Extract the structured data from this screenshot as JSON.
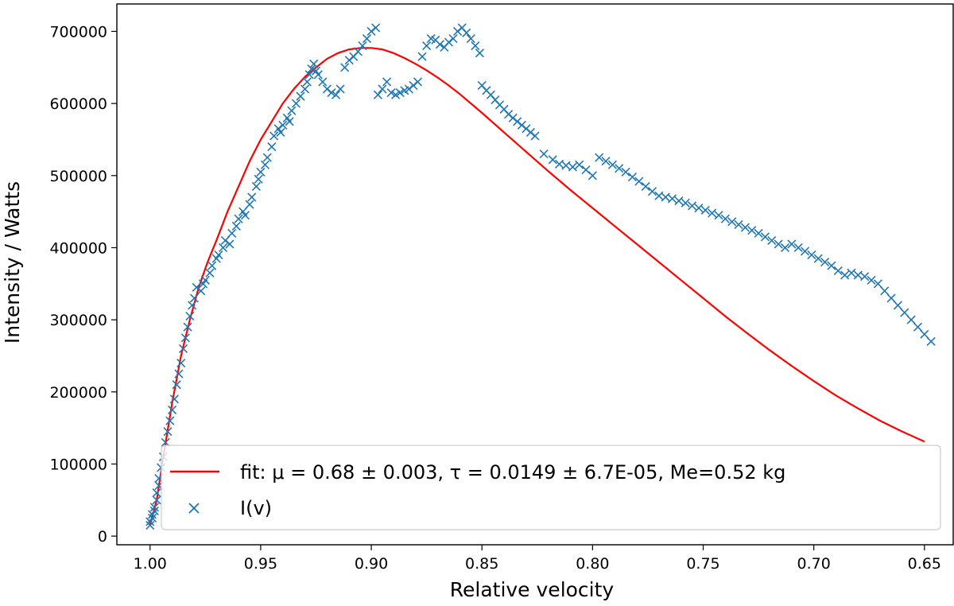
{
  "chart_data": {
    "type": "scatter",
    "title": "",
    "xlabel": "Relative velocity",
    "ylabel": "Intensity / Watts",
    "xlim": [
      1.015,
      0.637
    ],
    "ylim": [
      -12000,
      738000
    ],
    "x_inverted": true,
    "xticks": [
      1.0,
      0.95,
      0.9,
      0.85,
      0.8,
      0.75,
      0.7,
      0.65
    ],
    "xtick_labels": [
      "1.00",
      "0.95",
      "0.90",
      "0.85",
      "0.80",
      "0.75",
      "0.70",
      "0.65"
    ],
    "yticks": [
      0,
      100000,
      200000,
      300000,
      400000,
      500000,
      600000,
      700000
    ],
    "ytick_labels": [
      "0",
      "100000",
      "200000",
      "300000",
      "400000",
      "500000",
      "600000",
      "700000"
    ],
    "grid": false,
    "legend_position": "lower-center",
    "series": [
      {
        "name": "fit",
        "kind": "line",
        "color": "#ff0000",
        "legend_label": "fit: μ = 0.68 ± 0.003, τ = 0.0149 ± 6.7E-05, Me=0.52 kg",
        "points": [
          [
            1.0,
            15000
          ],
          [
            0.997,
            50000
          ],
          [
            0.994,
            110000
          ],
          [
            0.99,
            185000
          ],
          [
            0.986,
            250000
          ],
          [
            0.982,
            300000
          ],
          [
            0.978,
            345000
          ],
          [
            0.974,
            380000
          ],
          [
            0.97,
            410000
          ],
          [
            0.965,
            450000
          ],
          [
            0.96,
            485000
          ],
          [
            0.955,
            520000
          ],
          [
            0.95,
            550000
          ],
          [
            0.945,
            575000
          ],
          [
            0.94,
            600000
          ],
          [
            0.935,
            620000
          ],
          [
            0.93,
            637000
          ],
          [
            0.925,
            650000
          ],
          [
            0.92,
            662000
          ],
          [
            0.915,
            670000
          ],
          [
            0.91,
            675000
          ],
          [
            0.905,
            677000
          ],
          [
            0.9,
            677000
          ],
          [
            0.895,
            675000
          ],
          [
            0.89,
            670000
          ],
          [
            0.885,
            663000
          ],
          [
            0.88,
            655000
          ],
          [
            0.875,
            646000
          ],
          [
            0.87,
            636000
          ],
          [
            0.865,
            625000
          ],
          [
            0.86,
            613000
          ],
          [
            0.85,
            587000
          ],
          [
            0.84,
            560000
          ],
          [
            0.83,
            533000
          ],
          [
            0.82,
            506000
          ],
          [
            0.81,
            480000
          ],
          [
            0.8,
            455000
          ],
          [
            0.79,
            430000
          ],
          [
            0.78,
            405000
          ],
          [
            0.77,
            380000
          ],
          [
            0.76,
            355000
          ],
          [
            0.75,
            330000
          ],
          [
            0.74,
            305000
          ],
          [
            0.73,
            281000
          ],
          [
            0.72,
            258000
          ],
          [
            0.71,
            236000
          ],
          [
            0.7,
            215000
          ],
          [
            0.69,
            195000
          ],
          [
            0.68,
            177000
          ],
          [
            0.67,
            160000
          ],
          [
            0.66,
            145000
          ],
          [
            0.65,
            131000
          ]
        ]
      },
      {
        "name": "I(v)",
        "kind": "scatter",
        "marker": "x",
        "color": "#1f77b4",
        "legend_label": "I(v)",
        "points": [
          [
            1.0,
            15000
          ],
          [
            1.0,
            20000
          ],
          [
            0.999,
            25000
          ],
          [
            0.999,
            30000
          ],
          [
            0.998,
            35000
          ],
          [
            0.998,
            40000
          ],
          [
            0.997,
            50000
          ],
          [
            0.997,
            60000
          ],
          [
            0.996,
            70000
          ],
          [
            0.996,
            80000
          ],
          [
            0.995,
            95000
          ],
          [
            0.994,
            110000
          ],
          [
            0.993,
            130000
          ],
          [
            0.992,
            145000
          ],
          [
            0.991,
            160000
          ],
          [
            0.99,
            175000
          ],
          [
            0.989,
            190000
          ],
          [
            0.988,
            210000
          ],
          [
            0.987,
            225000
          ],
          [
            0.986,
            240000
          ],
          [
            0.985,
            260000
          ],
          [
            0.984,
            275000
          ],
          [
            0.983,
            290000
          ],
          [
            0.982,
            305000
          ],
          [
            0.981,
            320000
          ],
          [
            0.98,
            330000
          ],
          [
            0.979,
            345000
          ],
          [
            0.977,
            340000
          ],
          [
            0.976,
            350000
          ],
          [
            0.975,
            355000
          ],
          [
            0.973,
            365000
          ],
          [
            0.972,
            375000
          ],
          [
            0.97,
            385000
          ],
          [
            0.969,
            390000
          ],
          [
            0.967,
            400000
          ],
          [
            0.966,
            410000
          ],
          [
            0.964,
            405000
          ],
          [
            0.963,
            420000
          ],
          [
            0.961,
            430000
          ],
          [
            0.96,
            440000
          ],
          [
            0.958,
            450000
          ],
          [
            0.957,
            445000
          ],
          [
            0.955,
            460000
          ],
          [
            0.954,
            470000
          ],
          [
            0.952,
            485000
          ],
          [
            0.951,
            495000
          ],
          [
            0.95,
            505000
          ],
          [
            0.948,
            515000
          ],
          [
            0.947,
            525000
          ],
          [
            0.945,
            540000
          ],
          [
            0.944,
            555000
          ],
          [
            0.942,
            565000
          ],
          [
            0.941,
            560000
          ],
          [
            0.94,
            570000
          ],
          [
            0.938,
            580000
          ],
          [
            0.937,
            575000
          ],
          [
            0.936,
            590000
          ],
          [
            0.934,
            600000
          ],
          [
            0.932,
            610000
          ],
          [
            0.93,
            620000
          ],
          [
            0.929,
            630000
          ],
          [
            0.928,
            640000
          ],
          [
            0.927,
            648000
          ],
          [
            0.926,
            655000
          ],
          [
            0.925,
            645000
          ],
          [
            0.924,
            640000
          ],
          [
            0.922,
            630000
          ],
          [
            0.92,
            620000
          ],
          [
            0.918,
            615000
          ],
          [
            0.916,
            612000
          ],
          [
            0.914,
            620000
          ],
          [
            0.912,
            650000
          ],
          [
            0.91,
            660000
          ],
          [
            0.908,
            665000
          ],
          [
            0.906,
            672000
          ],
          [
            0.904,
            680000
          ],
          [
            0.902,
            690000
          ],
          [
            0.9,
            700000
          ],
          [
            0.898,
            705000
          ],
          [
            0.897,
            612000
          ],
          [
            0.895,
            620000
          ],
          [
            0.893,
            630000
          ],
          [
            0.891,
            615000
          ],
          [
            0.889,
            612000
          ],
          [
            0.887,
            615000
          ],
          [
            0.885,
            618000
          ],
          [
            0.883,
            620000
          ],
          [
            0.881,
            625000
          ],
          [
            0.879,
            630000
          ],
          [
            0.877,
            665000
          ],
          [
            0.875,
            680000
          ],
          [
            0.873,
            690000
          ],
          [
            0.871,
            688000
          ],
          [
            0.869,
            682000
          ],
          [
            0.867,
            678000
          ],
          [
            0.865,
            685000
          ],
          [
            0.863,
            690000
          ],
          [
            0.861,
            700000
          ],
          [
            0.859,
            705000
          ],
          [
            0.857,
            698000
          ],
          [
            0.855,
            690000
          ],
          [
            0.853,
            680000
          ],
          [
            0.851,
            670000
          ],
          [
            0.85,
            625000
          ],
          [
            0.848,
            618000
          ],
          [
            0.846,
            612000
          ],
          [
            0.844,
            605000
          ],
          [
            0.842,
            598000
          ],
          [
            0.84,
            592000
          ],
          [
            0.838,
            585000
          ],
          [
            0.836,
            580000
          ],
          [
            0.834,
            575000
          ],
          [
            0.832,
            570000
          ],
          [
            0.83,
            565000
          ],
          [
            0.828,
            560000
          ],
          [
            0.826,
            555000
          ],
          [
            0.822,
            530000
          ],
          [
            0.818,
            522000
          ],
          [
            0.815,
            516000
          ],
          [
            0.812,
            514000
          ],
          [
            0.809,
            512000
          ],
          [
            0.806,
            515000
          ],
          [
            0.803,
            508000
          ],
          [
            0.8,
            500000
          ],
          [
            0.797,
            525000
          ],
          [
            0.794,
            520000
          ],
          [
            0.791,
            515000
          ],
          [
            0.788,
            510000
          ],
          [
            0.785,
            505000
          ],
          [
            0.782,
            498000
          ],
          [
            0.779,
            492000
          ],
          [
            0.776,
            485000
          ],
          [
            0.773,
            478000
          ],
          [
            0.77,
            472000
          ],
          [
            0.767,
            470000
          ],
          [
            0.764,
            468000
          ],
          [
            0.761,
            465000
          ],
          [
            0.758,
            462000
          ],
          [
            0.755,
            458000
          ],
          [
            0.752,
            455000
          ],
          [
            0.749,
            452000
          ],
          [
            0.746,
            448000
          ],
          [
            0.743,
            445000
          ],
          [
            0.74,
            440000
          ],
          [
            0.737,
            436000
          ],
          [
            0.734,
            432000
          ],
          [
            0.731,
            428000
          ],
          [
            0.728,
            424000
          ],
          [
            0.725,
            420000
          ],
          [
            0.722,
            415000
          ],
          [
            0.719,
            410000
          ],
          [
            0.716,
            405000
          ],
          [
            0.713,
            400000
          ],
          [
            0.71,
            405000
          ],
          [
            0.707,
            400000
          ],
          [
            0.704,
            395000
          ],
          [
            0.701,
            390000
          ],
          [
            0.698,
            385000
          ],
          [
            0.695,
            380000
          ],
          [
            0.692,
            375000
          ],
          [
            0.689,
            368000
          ],
          [
            0.686,
            362000
          ],
          [
            0.683,
            365000
          ],
          [
            0.68,
            362000
          ],
          [
            0.677,
            360000
          ],
          [
            0.674,
            355000
          ],
          [
            0.671,
            350000
          ],
          [
            0.668,
            340000
          ],
          [
            0.665,
            330000
          ],
          [
            0.662,
            320000
          ],
          [
            0.659,
            310000
          ],
          [
            0.656,
            300000
          ],
          [
            0.653,
            290000
          ],
          [
            0.65,
            280000
          ],
          [
            0.647,
            270000
          ]
        ]
      }
    ]
  }
}
